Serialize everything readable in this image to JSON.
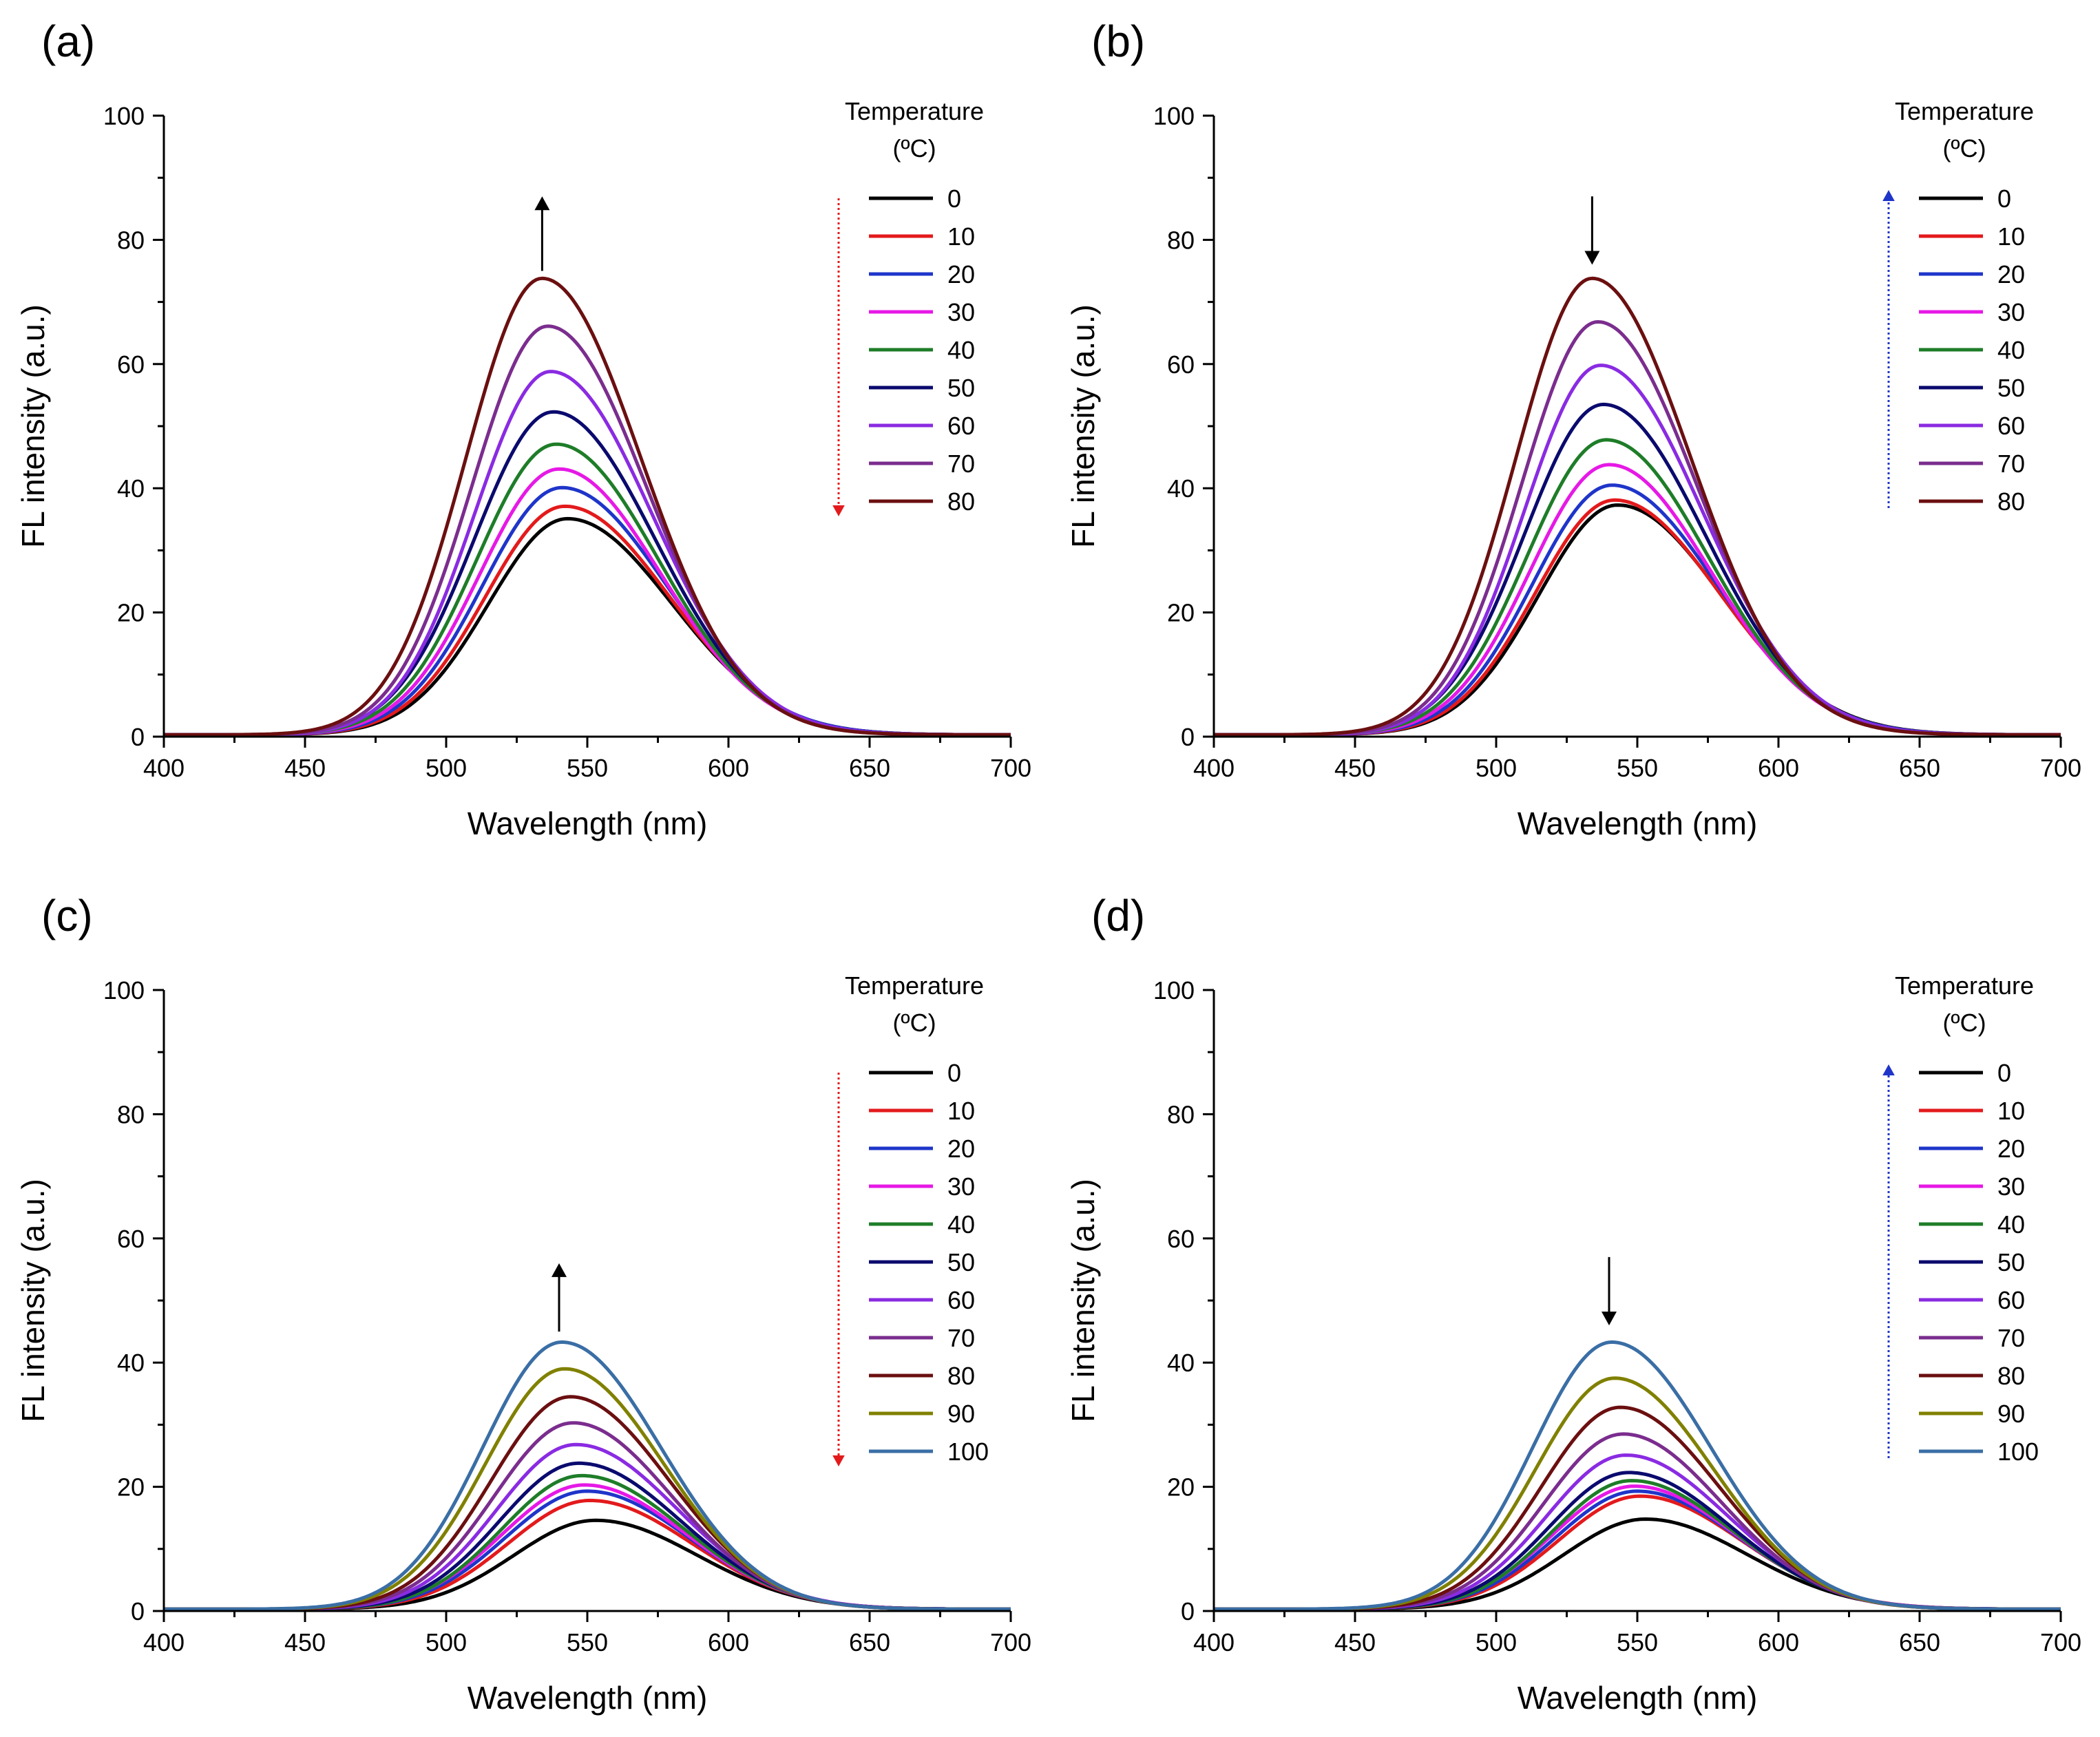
{
  "chart_data": [
    {
      "type": "line",
      "panel_label": "(a)",
      "xlabel": "Wavelength (nm)",
      "ylabel": "FL intensity (a.u.)",
      "xlim": [
        400,
        700
      ],
      "ylim": [
        0,
        100
      ],
      "xticks": [
        "400",
        "450",
        "500",
        "550",
        "600",
        "650",
        "700"
      ],
      "yticks": [
        "0",
        "20",
        "40",
        "60",
        "80",
        "100"
      ],
      "legend_title": [
        "Temperature",
        "(ºC)"
      ],
      "grid": false,
      "arrow": {
        "direction": "up",
        "x": 534,
        "y_from": 75,
        "y_to": 87
      },
      "legend_arrow": {
        "direction": "down",
        "color": "#e31a1c"
      },
      "series": [
        {
          "name": "0",
          "color": "#000000",
          "peak": 34.8,
          "center": 543,
          "sl": 28,
          "sr": 37
        },
        {
          "name": "10",
          "color": "#e31a1c",
          "peak": 36.8,
          "center": 542,
          "sl": 28,
          "sr": 37
        },
        {
          "name": "20",
          "color": "#1f35c9",
          "peak": 39.8,
          "center": 541,
          "sl": 28,
          "sr": 37
        },
        {
          "name": "30",
          "color": "#e619e6",
          "peak": 42.8,
          "center": 540,
          "sl": 28,
          "sr": 36
        },
        {
          "name": "40",
          "color": "#1e7d28",
          "peak": 46.8,
          "center": 539,
          "sl": 28,
          "sr": 36
        },
        {
          "name": "50",
          "color": "#0a0a6e",
          "peak": 52.0,
          "center": 538,
          "sl": 28,
          "sr": 36
        },
        {
          "name": "60",
          "color": "#8a2be2",
          "peak": 58.5,
          "center": 537,
          "sl": 27,
          "sr": 36
        },
        {
          "name": "70",
          "color": "#7b2d8e",
          "peak": 65.8,
          "center": 536,
          "sl": 27,
          "sr": 35
        },
        {
          "name": "80",
          "color": "#6b0f10",
          "peak": 73.5,
          "center": 534,
          "sl": 27,
          "sr": 35
        }
      ]
    },
    {
      "type": "line",
      "panel_label": "(b)",
      "xlabel": "Wavelength (nm)",
      "ylabel": "FL intensity (a.u.)",
      "xlim": [
        400,
        700
      ],
      "ylim": [
        0,
        100
      ],
      "xticks": [
        "400",
        "450",
        "500",
        "550",
        "600",
        "650",
        "700"
      ],
      "yticks": [
        "0",
        "20",
        "40",
        "60",
        "80",
        "100"
      ],
      "legend_title": [
        "Temperature",
        "(ºC)"
      ],
      "grid": false,
      "arrow": {
        "direction": "down",
        "x": 534,
        "y_from": 87,
        "y_to": 76
      },
      "legend_arrow": {
        "direction": "up",
        "color": "#1f35c9"
      },
      "series": [
        {
          "name": "0",
          "color": "#000000",
          "peak": 37.0,
          "center": 543,
          "sl": 28,
          "sr": 37
        },
        {
          "name": "10",
          "color": "#e31a1c",
          "peak": 37.8,
          "center": 542,
          "sl": 28,
          "sr": 37
        },
        {
          "name": "20",
          "color": "#1f35c9",
          "peak": 40.2,
          "center": 541,
          "sl": 28,
          "sr": 37
        },
        {
          "name": "30",
          "color": "#e619e6",
          "peak": 43.5,
          "center": 540,
          "sl": 28,
          "sr": 36
        },
        {
          "name": "40",
          "color": "#1e7d28",
          "peak": 47.5,
          "center": 539,
          "sl": 28,
          "sr": 36
        },
        {
          "name": "50",
          "color": "#0a0a6e",
          "peak": 53.2,
          "center": 538,
          "sl": 28,
          "sr": 36
        },
        {
          "name": "60",
          "color": "#8a2be2",
          "peak": 59.5,
          "center": 537,
          "sl": 27,
          "sr": 36
        },
        {
          "name": "70",
          "color": "#7b2d8e",
          "peak": 66.5,
          "center": 536,
          "sl": 27,
          "sr": 35
        },
        {
          "name": "80",
          "color": "#6b0f10",
          "peak": 73.5,
          "center": 534,
          "sl": 27,
          "sr": 35
        }
      ]
    },
    {
      "type": "line",
      "panel_label": "(c)",
      "xlabel": "Wavelength (nm)",
      "ylabel": "FL intensity (a.u.)",
      "xlim": [
        400,
        700
      ],
      "ylim": [
        0,
        100
      ],
      "xticks": [
        "400",
        "450",
        "500",
        "550",
        "600",
        "650",
        "700"
      ],
      "yticks": [
        "0",
        "20",
        "40",
        "60",
        "80",
        "100"
      ],
      "legend_title": [
        "Temperature",
        "(ºC)"
      ],
      "grid": false,
      "arrow": {
        "direction": "up",
        "x": 540,
        "y_from": 45,
        "y_to": 56
      },
      "legend_arrow": {
        "direction": "down",
        "color": "#e31a1c"
      },
      "series": [
        {
          "name": "0",
          "color": "#000000",
          "peak": 14.3,
          "center": 553,
          "sl": 29,
          "sr": 36
        },
        {
          "name": "10",
          "color": "#e31a1c",
          "peak": 17.5,
          "center": 551,
          "sl": 29,
          "sr": 36
        },
        {
          "name": "20",
          "color": "#1f35c9",
          "peak": 19.0,
          "center": 550,
          "sl": 29,
          "sr": 36
        },
        {
          "name": "30",
          "color": "#e619e6",
          "peak": 20.0,
          "center": 549,
          "sl": 29,
          "sr": 36
        },
        {
          "name": "40",
          "color": "#1e7d28",
          "peak": 21.5,
          "center": 548,
          "sl": 28,
          "sr": 36
        },
        {
          "name": "50",
          "color": "#0a0a6e",
          "peak": 23.5,
          "center": 547,
          "sl": 28,
          "sr": 36
        },
        {
          "name": "60",
          "color": "#8a2be2",
          "peak": 26.5,
          "center": 546,
          "sl": 28,
          "sr": 36
        },
        {
          "name": "70",
          "color": "#7b2d8e",
          "peak": 30.0,
          "center": 545,
          "sl": 28,
          "sr": 35
        },
        {
          "name": "80",
          "color": "#6b0f10",
          "peak": 34.2,
          "center": 544,
          "sl": 28,
          "sr": 35
        },
        {
          "name": "90",
          "color": "#808000",
          "peak": 38.7,
          "center": 542,
          "sl": 28,
          "sr": 35
        },
        {
          "name": "100",
          "color": "#3a6ea5",
          "peak": 43.0,
          "center": 541,
          "sl": 28,
          "sr": 35
        }
      ]
    },
    {
      "type": "line",
      "panel_label": "(d)",
      "xlabel": "Wavelength (nm)",
      "ylabel": "FL intensity (a.u.)",
      "xlim": [
        400,
        700
      ],
      "ylim": [
        0,
        100
      ],
      "xticks": [
        "400",
        "450",
        "500",
        "550",
        "600",
        "650",
        "700"
      ],
      "yticks": [
        "0",
        "20",
        "40",
        "60",
        "80",
        "100"
      ],
      "legend_title": [
        "Temperature",
        "(ºC)"
      ],
      "grid": false,
      "arrow": {
        "direction": "down",
        "x": 540,
        "y_from": 57,
        "y_to": 46
      },
      "legend_arrow": {
        "direction": "up",
        "color": "#1f35c9"
      },
      "series": [
        {
          "name": "0",
          "color": "#000000",
          "peak": 14.5,
          "center": 553,
          "sl": 29,
          "sr": 36
        },
        {
          "name": "10",
          "color": "#e31a1c",
          "peak": 18.2,
          "center": 551,
          "sl": 29,
          "sr": 36
        },
        {
          "name": "20",
          "color": "#1f35c9",
          "peak": 19.0,
          "center": 550,
          "sl": 29,
          "sr": 36
        },
        {
          "name": "30",
          "color": "#e619e6",
          "peak": 19.8,
          "center": 549,
          "sl": 29,
          "sr": 36
        },
        {
          "name": "40",
          "color": "#1e7d28",
          "peak": 20.7,
          "center": 548,
          "sl": 28,
          "sr": 36
        },
        {
          "name": "50",
          "color": "#0a0a6e",
          "peak": 22.0,
          "center": 547,
          "sl": 28,
          "sr": 36
        },
        {
          "name": "60",
          "color": "#8a2be2",
          "peak": 24.8,
          "center": 546,
          "sl": 28,
          "sr": 36
        },
        {
          "name": "70",
          "color": "#7b2d8e",
          "peak": 28.2,
          "center": 545,
          "sl": 28,
          "sr": 35
        },
        {
          "name": "80",
          "color": "#6b0f10",
          "peak": 32.5,
          "center": 544,
          "sl": 28,
          "sr": 35
        },
        {
          "name": "90",
          "color": "#808000",
          "peak": 37.2,
          "center": 542,
          "sl": 28,
          "sr": 35
        },
        {
          "name": "100",
          "color": "#3a6ea5",
          "peak": 43.0,
          "center": 541,
          "sl": 28,
          "sr": 35
        }
      ]
    }
  ]
}
